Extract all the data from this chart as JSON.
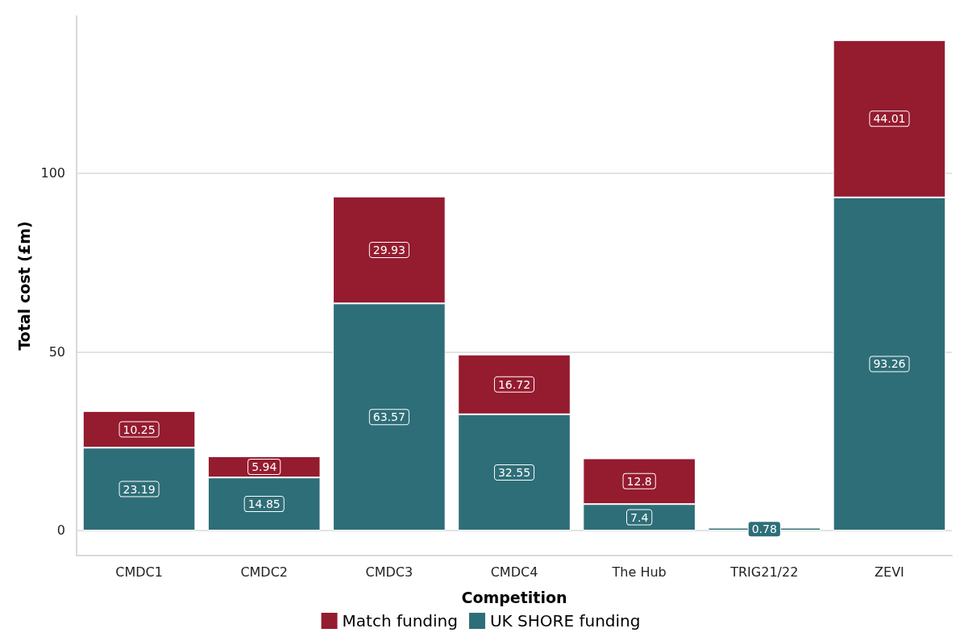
{
  "chart_data": {
    "type": "bar",
    "stacked": true,
    "xlabel": "Competition",
    "ylabel": "Total cost (£m)",
    "categories": [
      "CMDC1",
      "CMDC2",
      "CMDC3",
      "CMDC4",
      "The Hub",
      "TRIG21/22",
      "ZEVI"
    ],
    "series": [
      {
        "name": "UK SHORE funding",
        "color": "#2e6e78",
        "values": [
          23.19,
          14.85,
          63.57,
          32.55,
          7.4,
          0.78,
          93.26
        ]
      },
      {
        "name": "Match funding",
        "color": "#951b2f",
        "values": [
          10.25,
          5.94,
          29.93,
          16.72,
          12.8,
          null,
          44.01
        ]
      }
    ],
    "ylim": [
      -7,
      144
    ],
    "yticks": [
      0,
      50,
      100
    ],
    "grid": "y",
    "legend": "bottom",
    "data_labels": true
  }
}
